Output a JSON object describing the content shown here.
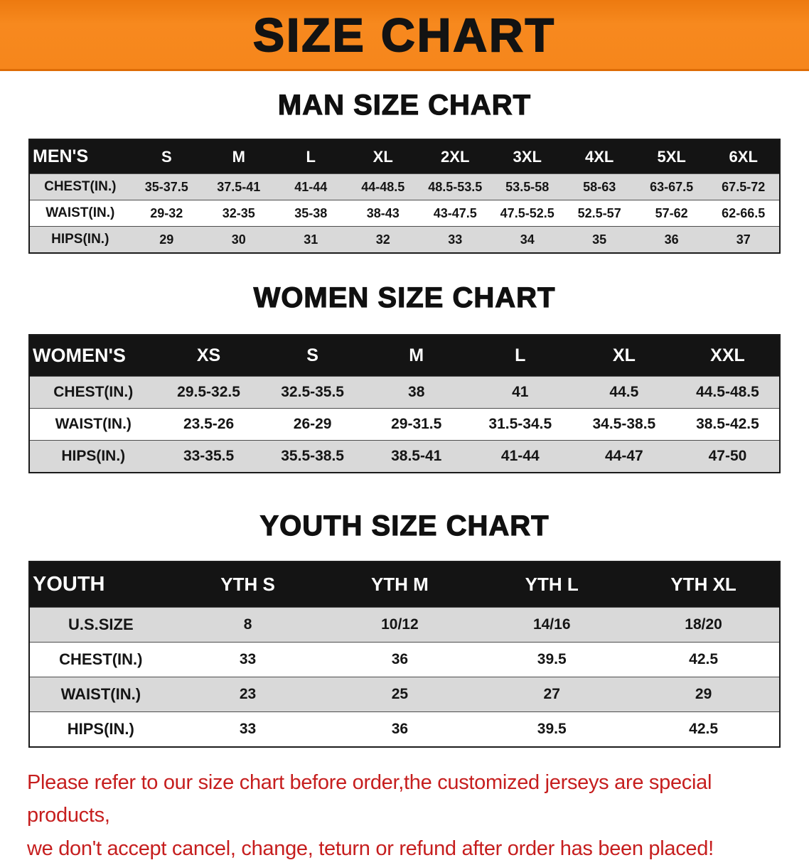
{
  "banner": {
    "title": "SIZE CHART"
  },
  "colors": {
    "banner_bg": "#f6861c",
    "table_header_bg": "#141414",
    "row_stripe": "#d9d9d9",
    "footer_text": "#c61e1e"
  },
  "tables": [
    {
      "heading": "MAN SIZE CHART",
      "header_label": "MEN'S",
      "columns": [
        "S",
        "M",
        "L",
        "XL",
        "2XL",
        "3XL",
        "4XL",
        "5XL",
        "6XL"
      ],
      "rows": [
        {
          "label": "CHEST(IN.)",
          "values": [
            "35-37.5",
            "37.5-41",
            "41-44",
            "44-48.5",
            "48.5-53.5",
            "53.5-58",
            "58-63",
            "63-67.5",
            "67.5-72"
          ]
        },
        {
          "label": "WAIST(IN.)",
          "values": [
            "29-32",
            "32-35",
            "35-38",
            "38-43",
            "43-47.5",
            "47.5-52.5",
            "52.5-57",
            "57-62",
            "62-66.5"
          ]
        },
        {
          "label": "HIPS(IN.)",
          "values": [
            "29",
            "30",
            "31",
            "32",
            "33",
            "34",
            "35",
            "36",
            "37"
          ]
        }
      ]
    },
    {
      "heading": "WOMEN SIZE CHART",
      "header_label": "WOMEN'S",
      "columns": [
        "XS",
        "S",
        "M",
        "L",
        "XL",
        "XXL"
      ],
      "rows": [
        {
          "label": "CHEST(IN.)",
          "values": [
            "29.5-32.5",
            "32.5-35.5",
            "38",
            "41",
            "44.5",
            "44.5-48.5"
          ]
        },
        {
          "label": "WAIST(IN.)",
          "values": [
            "23.5-26",
            "26-29",
            "29-31.5",
            "31.5-34.5",
            "34.5-38.5",
            "38.5-42.5"
          ]
        },
        {
          "label": "HIPS(IN.)",
          "values": [
            "33-35.5",
            "35.5-38.5",
            "38.5-41",
            "41-44",
            "44-47",
            "47-50"
          ]
        }
      ]
    },
    {
      "heading": "YOUTH SIZE CHART",
      "header_label": "YOUTH",
      "columns": [
        "YTH S",
        "YTH M",
        "YTH L",
        "YTH XL"
      ],
      "rows": [
        {
          "label": "U.S.SIZE",
          "values": [
            "8",
            "10/12",
            "14/16",
            "18/20"
          ]
        },
        {
          "label": "CHEST(IN.)",
          "values": [
            "33",
            "36",
            "39.5",
            "42.5"
          ]
        },
        {
          "label": "WAIST(IN.)",
          "values": [
            "23",
            "25",
            "27",
            "29"
          ]
        },
        {
          "label": "HIPS(IN.)",
          "values": [
            "33",
            "36",
            "39.5",
            "42.5"
          ]
        }
      ]
    }
  ],
  "footer": {
    "line1": "Please refer to our size chart before order,the customized jerseys are special products,",
    "line2": "we don't accept cancel, change, teturn or refund after order has been placed!"
  }
}
